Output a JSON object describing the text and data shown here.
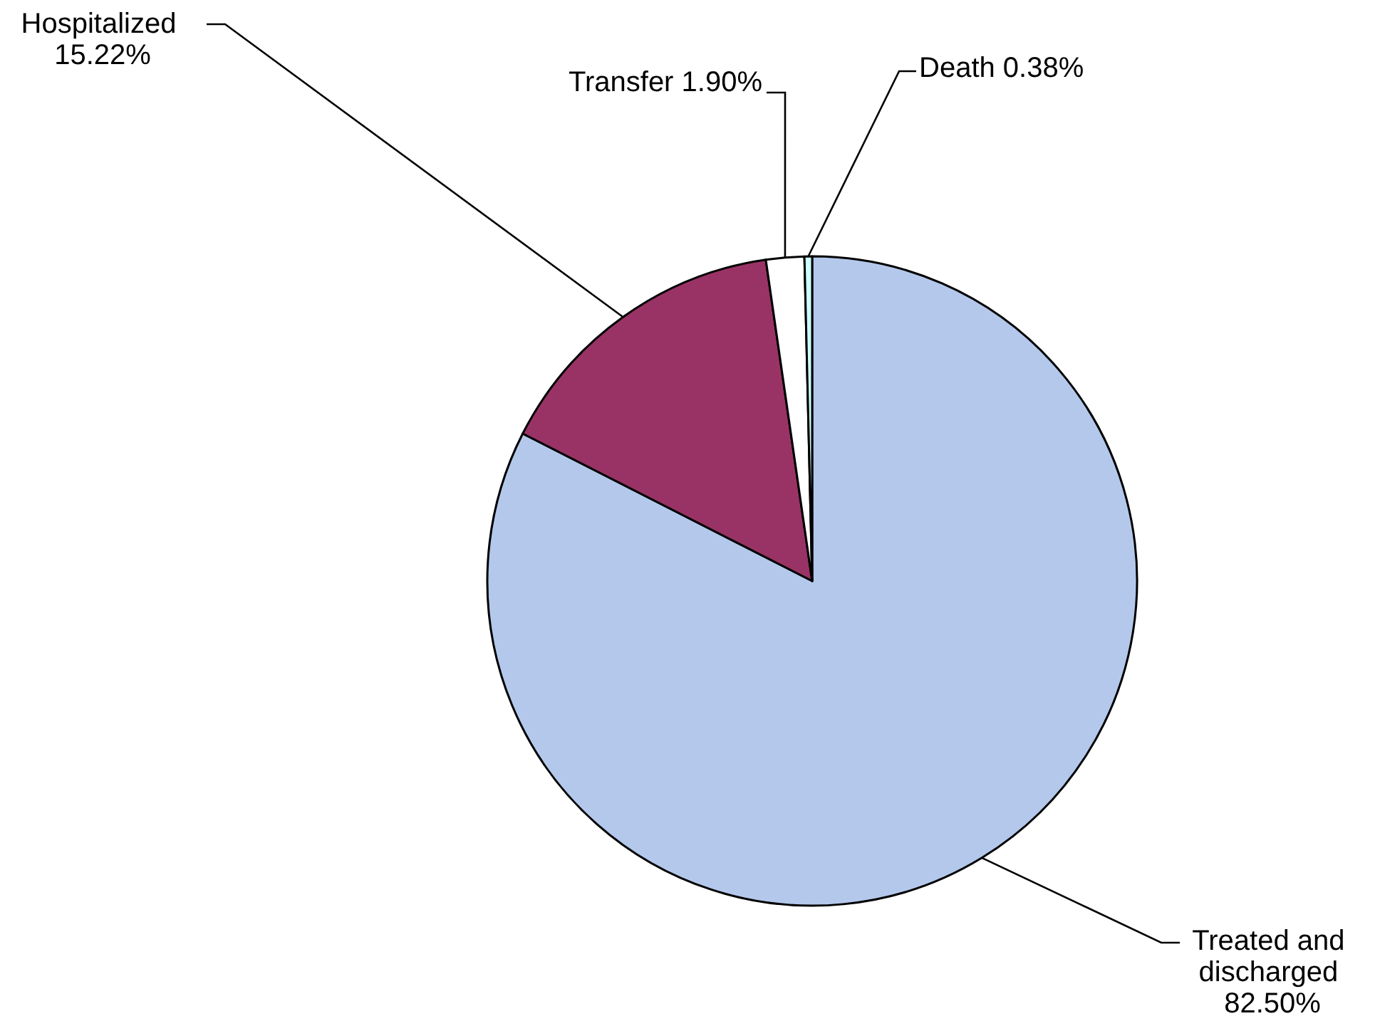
{
  "chart_data": {
    "type": "pie",
    "categories": [
      "Treated and discharged",
      "Hospitalized",
      "Transfer",
      "Death"
    ],
    "values": [
      82.5,
      15.22,
      1.9,
      0.38
    ],
    "value_labels": [
      "82.50%",
      "15.22%",
      "1.90%",
      "0.38%"
    ],
    "colors": [
      "#b4c8ec",
      "#993366",
      "#ffffff",
      "#ccffff"
    ]
  }
}
